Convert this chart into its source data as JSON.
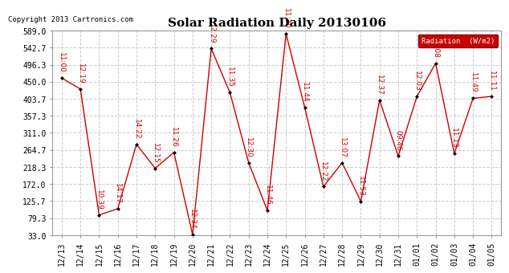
{
  "title": "Solar Radiation Daily 20130106",
  "copyright": "Copyright 2013 Cartronics.com",
  "legend_label": "Radiation  (W/m2)",
  "x_labels": [
    "12/13",
    "12/14",
    "12/15",
    "12/16",
    "12/17",
    "12/18",
    "12/19",
    "12/20",
    "12/21",
    "12/22",
    "12/23",
    "12/24",
    "12/25",
    "12/26",
    "12/27",
    "12/28",
    "12/29",
    "12/30",
    "12/31",
    "01/01",
    "01/02",
    "01/03",
    "01/04",
    "01/05"
  ],
  "y_values": [
    460,
    430,
    88,
    105,
    280,
    215,
    258,
    35,
    540,
    420,
    230,
    100,
    580,
    380,
    165,
    230,
    125,
    400,
    248,
    410,
    500,
    255,
    405,
    410
  ],
  "time_labels": [
    "11:00",
    "12:19",
    "10:39",
    "14:17",
    "14:22",
    "12:15",
    "11:26",
    "12:34",
    "12:29",
    "11:35",
    "12:30",
    "11:46",
    "11:30",
    "11:44",
    "12:22",
    "13:07",
    "11:53",
    "12:37",
    "09:46",
    "12:03",
    "11:08",
    "11:13",
    "11:49",
    "11:11"
  ],
  "y_ticks": [
    33.0,
    79.3,
    125.7,
    172.0,
    218.3,
    264.7,
    311.0,
    357.3,
    403.7,
    450.0,
    496.3,
    542.7,
    589.0
  ],
  "ylim": [
    33.0,
    589.0
  ],
  "line_color": "#cc0000",
  "marker_color": "#000000",
  "label_color": "#cc0000",
  "bg_color": "#ffffff",
  "grid_color": "#cccccc",
  "title_fontsize": 11,
  "label_fontsize": 6.5,
  "copyright_fontsize": 6.5,
  "legend_bg": "#cc0000",
  "legend_text_color": "#ffffff"
}
